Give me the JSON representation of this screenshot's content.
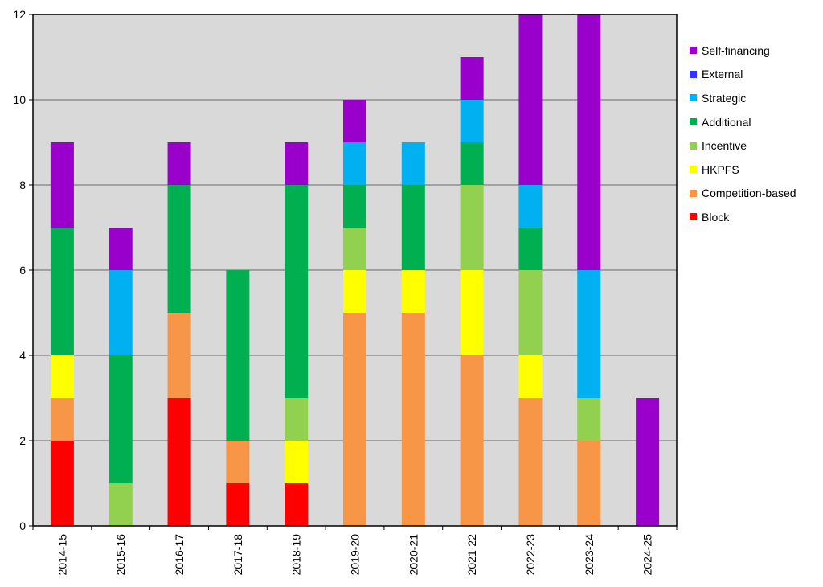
{
  "chart_data": {
    "type": "bar",
    "stacked": true,
    "categories": [
      "2014-15",
      "2015-16",
      "2016-17",
      "2017-18",
      "2018-19",
      "2019-20",
      "2020-21",
      "2021-22",
      "2022-23",
      "2023-24",
      "2024-25"
    ],
    "ylim": [
      0,
      12
    ],
    "yticks": [
      0,
      2,
      4,
      6,
      8,
      10,
      12
    ],
    "grid": true,
    "legend_position": "right",
    "series": [
      {
        "name": "Block",
        "color": "#ff0000",
        "values": [
          2,
          0,
          3,
          1,
          1,
          0,
          0,
          0,
          0,
          0,
          0
        ]
      },
      {
        "name": "Competition-based",
        "color": "#f79646",
        "values": [
          1,
          0,
          2,
          1,
          0,
          5,
          5,
          4,
          3,
          2,
          0
        ]
      },
      {
        "name": "HKPFS",
        "color": "#ffff00",
        "values": [
          1,
          0,
          0,
          0,
          1,
          1,
          1,
          2,
          1,
          0,
          0
        ]
      },
      {
        "name": "Incentive",
        "color": "#92d050",
        "values": [
          0,
          1,
          0,
          0,
          1,
          1,
          0,
          2,
          2,
          1,
          0
        ]
      },
      {
        "name": "Additional",
        "color": "#00b050",
        "values": [
          3,
          3,
          3,
          4,
          5,
          1,
          2,
          1,
          1,
          0,
          0
        ]
      },
      {
        "name": "Strategic",
        "color": "#00b0f0",
        "values": [
          0,
          2,
          0,
          0,
          0,
          1,
          1,
          1,
          1,
          3,
          0
        ]
      },
      {
        "name": "External",
        "color": "#3333ff",
        "values": [
          0,
          0,
          0,
          0,
          0,
          0,
          0,
          0,
          0,
          0,
          0
        ]
      },
      {
        "name": "Self-financing",
        "color": "#9900cc",
        "values": [
          2,
          1,
          1,
          0,
          1,
          1,
          0,
          1,
          4,
          6,
          3
        ]
      }
    ],
    "legend_order": [
      "Self-financing",
      "External",
      "Strategic",
      "Additional",
      "Incentive",
      "HKPFS",
      "Competition-based",
      "Block"
    ],
    "colors": {
      "plot_background": "#d9d9d9",
      "gridline": "#808080",
      "axis": "#000000"
    }
  }
}
